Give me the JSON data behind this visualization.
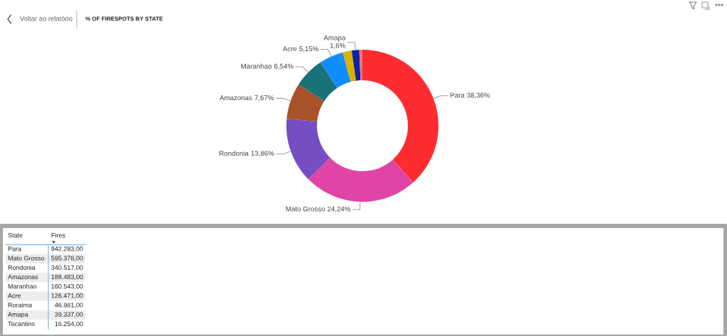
{
  "chart_data": [
    {
      "type": "donut",
      "title": "% OF FIRESPOTS BY STATE",
      "annotations": [
        "Voltar ao relatório"
      ],
      "categories": [
        "Para",
        "Mato Grosso",
        "Rondonia",
        "Amazonas",
        "Maranhao",
        "Acre",
        null,
        "Amapa",
        null
      ],
      "values": [
        38.36,
        24.24,
        13.86,
        7.67,
        6.54,
        5.15,
        1.91,
        1.6,
        0.66
      ],
      "colors": [
        "#fc2c30",
        "#e044a7",
        "#744ec2",
        "#aa5229",
        "#197278",
        "#118dff",
        "#d9b300",
        "#12239e",
        "#e8747c"
      ],
      "value_labels": [
        "38,36%",
        "24,24%",
        "13,86%",
        "7,67%",
        "6,54%",
        "5,15%",
        null,
        "1,6%",
        null
      ]
    },
    {
      "type": "other",
      "xlabel": "State",
      "ylabel": "Fires",
      "categories": [
        "Para",
        "Mato Grosso",
        "Rondonia",
        "Amazonas",
        "Maranhao",
        "Acre",
        "Roraima",
        "Amapa",
        "Tocantins"
      ],
      "values": [
        942283,
        595378,
        340517,
        188483,
        160543,
        126471,
        46981,
        39337,
        16254
      ],
      "value_labels": [
        "942.283,00",
        "595.378,00",
        "340.517,00",
        "188.483,00",
        "160.543,00",
        "126.471,00",
        "46.981,00",
        "39.337,00",
        "16.254,00"
      ]
    }
  ]
}
